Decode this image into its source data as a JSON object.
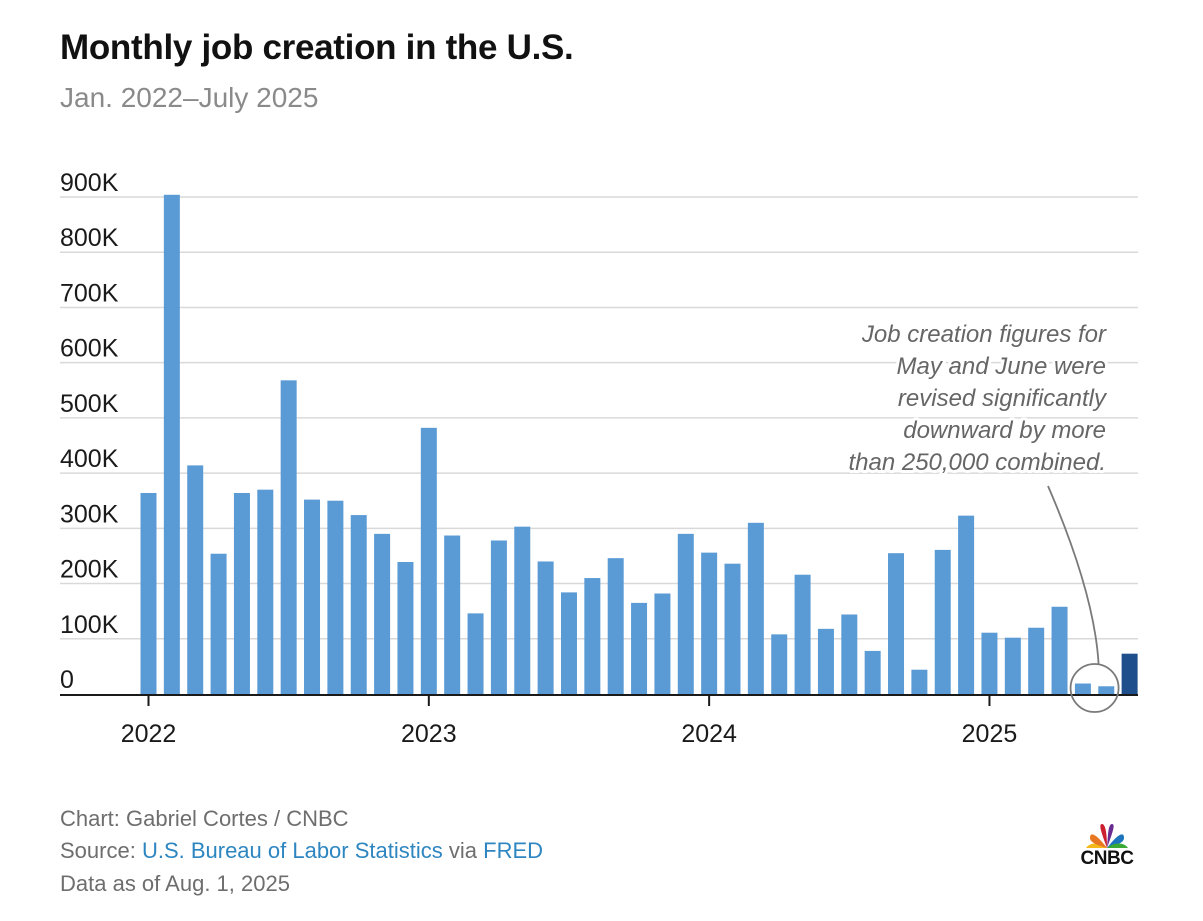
{
  "header": {
    "title": "Monthly job creation in the U.S.",
    "subtitle": "Jan. 2022–July 2025"
  },
  "chart_data": {
    "type": "bar",
    "title": "Monthly job creation in the U.S.",
    "subtitle": "Jan. 2022–July 2025",
    "xlabel": "",
    "ylabel": "",
    "ylim": [
      0,
      900000
    ],
    "yticks": [
      0,
      100000,
      200000,
      300000,
      400000,
      500000,
      600000,
      700000,
      800000,
      900000
    ],
    "ytick_labels": [
      "0",
      "100K",
      "200K",
      "300K",
      "400K",
      "500K",
      "600K",
      "700K",
      "800K",
      "900K"
    ],
    "xtick_labels": [
      {
        "label": "2022",
        "index": 0
      },
      {
        "label": "2023",
        "index": 12
      },
      {
        "label": "2024",
        "index": 24
      },
      {
        "label": "2025",
        "index": 36
      }
    ],
    "categories": [
      "Jan 2022",
      "Feb 2022",
      "Mar 2022",
      "Apr 2022",
      "May 2022",
      "Jun 2022",
      "Jul 2022",
      "Aug 2022",
      "Sep 2022",
      "Oct 2022",
      "Nov 2022",
      "Dec 2022",
      "Jan 2023",
      "Feb 2023",
      "Mar 2023",
      "Apr 2023",
      "May 2023",
      "Jun 2023",
      "Jul 2023",
      "Aug 2023",
      "Sep 2023",
      "Oct 2023",
      "Nov 2023",
      "Dec 2023",
      "Jan 2024",
      "Feb 2024",
      "Mar 2024",
      "Apr 2024",
      "May 2024",
      "Jun 2024",
      "Jul 2024",
      "Aug 2024",
      "Sep 2024",
      "Oct 2024",
      "Nov 2024",
      "Dec 2024",
      "Jan 2025",
      "Feb 2025",
      "Mar 2025",
      "Apr 2025",
      "May 2025",
      "Jun 2025",
      "Jul 2025"
    ],
    "values": [
      364000,
      904000,
      414000,
      254000,
      364000,
      370000,
      568000,
      352000,
      350000,
      324000,
      290000,
      239000,
      482000,
      287000,
      146000,
      278000,
      303000,
      240000,
      184000,
      210000,
      246000,
      165000,
      182000,
      290000,
      256000,
      236000,
      310000,
      108000,
      216000,
      118000,
      144000,
      78000,
      255000,
      44000,
      261000,
      323000,
      111000,
      102000,
      120000,
      158000,
      19000,
      14000,
      73000
    ],
    "highlight_index": 42,
    "bar_color": "#5b9bd5",
    "highlight_color": "#1f4e8c",
    "grid": true,
    "annotation": {
      "lines": [
        "Job creation figures for",
        "May and June were",
        "revised significantly",
        "downward by more",
        "than 250,000 combined."
      ],
      "target_indices": [
        40,
        41
      ]
    }
  },
  "footer": {
    "credit": "Chart: Gabriel Cortes / CNBC",
    "source_prefix": "Source: ",
    "source_link1": "U.S. Bureau of Labor Statistics",
    "source_mid": " via ",
    "source_link2": "FRED",
    "data_as_of": "Data as of Aug. 1, 2025"
  },
  "logo": {
    "text": "CNBC",
    "icon": "peacock-icon"
  }
}
